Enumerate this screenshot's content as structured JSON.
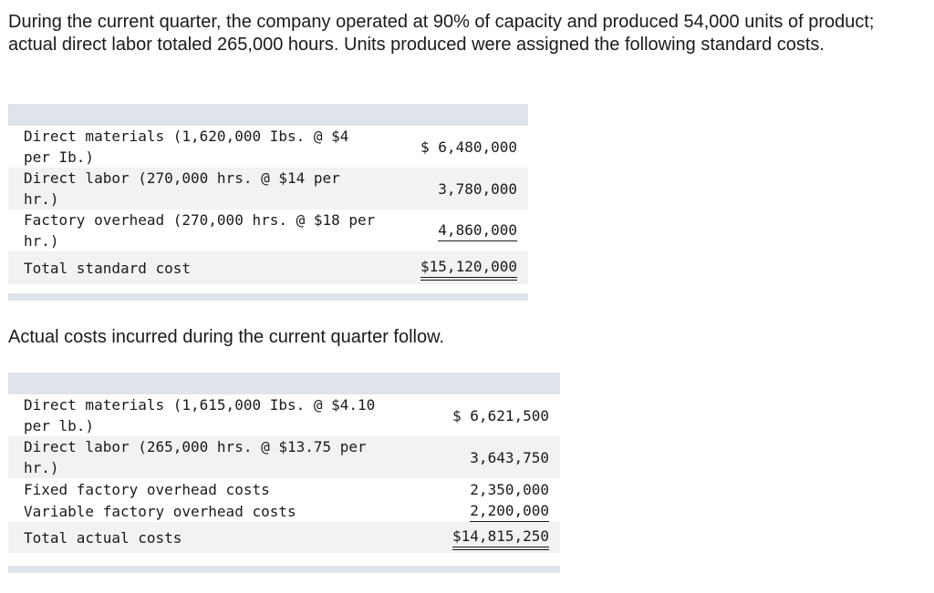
{
  "intro_text": "During the current quarter, the company operated at 90% of capacity and produced 54,000 units of product; actual direct labor totaled 265,000 hours. Units produced were assigned the following standard costs.",
  "standard_costs": {
    "rows": [
      {
        "label": "Direct materials (1,620,000 Ibs. @ $4 per Ib.)",
        "amount": "$ 6,480,000"
      },
      {
        "label": "Direct labor (270,000 hrs. @ $14 per hr.)",
        "amount": "3,780,000"
      },
      {
        "label": "Factory overhead (270,000 hrs. @ $18 per hr.)",
        "amount": "4,860,000"
      },
      {
        "label": "Total standard cost",
        "amount": "$15,120,000"
      }
    ]
  },
  "mid_text": "Actual costs incurred during the current quarter follow.",
  "actual_costs": {
    "rows": [
      {
        "label": "Direct materials (1,615,000 Ibs. @ $4.10 per lb.)",
        "amount": "$ 6,621,500"
      },
      {
        "label": "Direct labor (265,000 hrs. @ $13.75 per hr.)",
        "amount": "3,643,750"
      },
      {
        "label": "Fixed factory overhead costs",
        "amount": "2,350,000"
      },
      {
        "label": "Variable factory overhead costs",
        "amount": "2,200,000"
      },
      {
        "label": "Total actual costs",
        "amount": "$14,815,250"
      }
    ]
  }
}
